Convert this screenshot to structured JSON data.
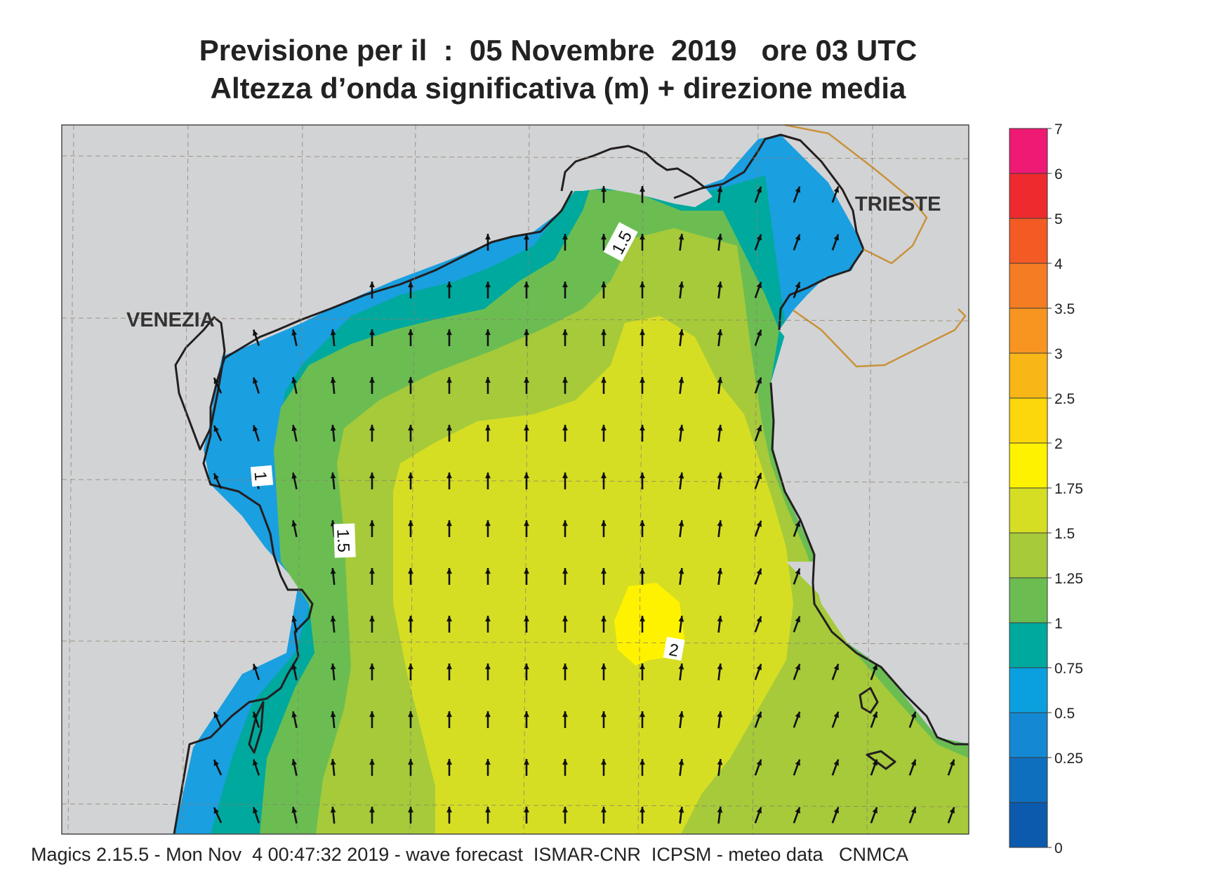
{
  "title_line1": "Previsione per il  :  05 Novembre  2019   ore 03 UTC",
  "title_line2": "Altezza d’onda significativa (m) + direzione media",
  "places": [
    {
      "id": "venezia",
      "label": "VENEZIA"
    },
    {
      "id": "trieste",
      "label": "TRIESTE"
    }
  ],
  "contour_labels": [
    {
      "id": "north",
      "label": "1.5"
    },
    {
      "id": "west-inner",
      "label": "1"
    },
    {
      "id": "west-outer",
      "label": "1.5"
    },
    {
      "id": "centre",
      "label": "2"
    }
  ],
  "colorbar": {
    "bounds": [
      "7",
      "6",
      "5",
      "4",
      "3.5",
      "3",
      "2.5",
      "2",
      "1.75",
      "1.5",
      "1.25",
      "1",
      "0.75",
      "0.5",
      "0.25",
      "0"
    ],
    "colors": [
      "#ee1a74",
      "#ee2a2e",
      "#f35a24",
      "#f47c22",
      "#f79520",
      "#f8b617",
      "#fbd70b",
      "#fef200",
      "#d6de24",
      "#a6ca3a",
      "#6bbd52",
      "#00a99d",
      "#0aa0e0",
      "#1488d2",
      "#0f6fbf",
      "#0b5aad"
    ]
  },
  "field_colors": {
    "land": "#d2d3d5",
    "band_0_75": "#1a9fe0",
    "band_1": "#00a99d",
    "band_1_25": "#6bbd52",
    "band_1_5": "#a6ca3a",
    "band_1_75": "#d6de24",
    "band_2": "#fef200",
    "coast": "#231f20",
    "border": "#c9923a"
  },
  "wave_direction": "north",
  "footer": "Magics 2.15.5 - Mon Nov  4 00:47:32 2019 - wave forecast  ISMAR-CNR  ICPSM - meteo data   CNMCA"
}
